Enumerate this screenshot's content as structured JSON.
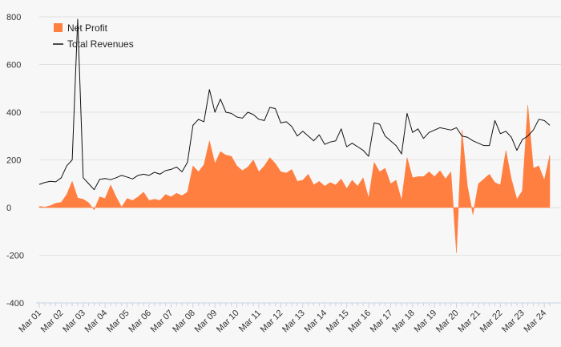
{
  "chart_data": {
    "type": "area",
    "title": "",
    "xlabel": "",
    "ylabel": "",
    "ylim": [
      -400,
      800
    ],
    "yticks": [
      -400,
      -200,
      0,
      200,
      400,
      600,
      800
    ],
    "ytick_labels": [
      "-400",
      "-200",
      "0",
      "200",
      "400",
      "600",
      "800"
    ],
    "grid": true,
    "legend_placement": "top-left",
    "x_tick_labels": [
      "Mar 01",
      "Mar 02",
      "Mar 03",
      "Mar 04",
      "Mar 05",
      "Mar 06",
      "Mar 07",
      "Mar 08",
      "Mar 09",
      "Mar 10",
      "Mar 11",
      "Mar 12",
      "Mar 13",
      "Mar 14",
      "Mar 15",
      "Mar 16",
      "Mar 17",
      "Mar 18",
      "Mar 19",
      "Mar 20",
      "Mar 21",
      "Mar 22",
      "Mar 23",
      "Mar 24"
    ],
    "points_per_year": 4,
    "series": [
      {
        "name": "Net Profit",
        "style": "area",
        "color": "#ff7f41",
        "values": [
          5,
          2,
          8,
          18,
          22,
          55,
          110,
          40,
          35,
          20,
          -10,
          45,
          38,
          95,
          45,
          2,
          38,
          30,
          45,
          65,
          30,
          35,
          30,
          55,
          45,
          60,
          50,
          65,
          175,
          150,
          180,
          280,
          185,
          235,
          220,
          215,
          175,
          155,
          170,
          200,
          150,
          175,
          210,
          185,
          150,
          145,
          160,
          110,
          115,
          140,
          95,
          110,
          90,
          105,
          95,
          120,
          80,
          115,
          90,
          125,
          40,
          190,
          150,
          165,
          100,
          115,
          30,
          210,
          125,
          130,
          130,
          150,
          130,
          155,
          120,
          150,
          -190,
          325,
          90,
          -30,
          100,
          120,
          140,
          105,
          95,
          240,
          120,
          35,
          70,
          430,
          165,
          175,
          115,
          220
        ]
      },
      {
        "name": "Total Revenues",
        "style": "line",
        "color": "#111111",
        "values": [
          97,
          105,
          110,
          108,
          125,
          175,
          200,
          790,
          125,
          100,
          75,
          118,
          122,
          117,
          125,
          135,
          128,
          120,
          135,
          140,
          135,
          148,
          140,
          155,
          160,
          170,
          150,
          190,
          345,
          370,
          360,
          495,
          400,
          455,
          400,
          395,
          380,
          375,
          400,
          390,
          370,
          365,
          420,
          415,
          355,
          360,
          340,
          300,
          320,
          300,
          280,
          305,
          265,
          275,
          280,
          330,
          255,
          270,
          255,
          240,
          215,
          355,
          350,
          300,
          280,
          260,
          225,
          395,
          315,
          330,
          290,
          315,
          325,
          335,
          330,
          325,
          335,
          300,
          295,
          280,
          270,
          260,
          260,
          365,
          310,
          320,
          295,
          240,
          285,
          300,
          325,
          370,
          365,
          345
        ]
      }
    ]
  }
}
